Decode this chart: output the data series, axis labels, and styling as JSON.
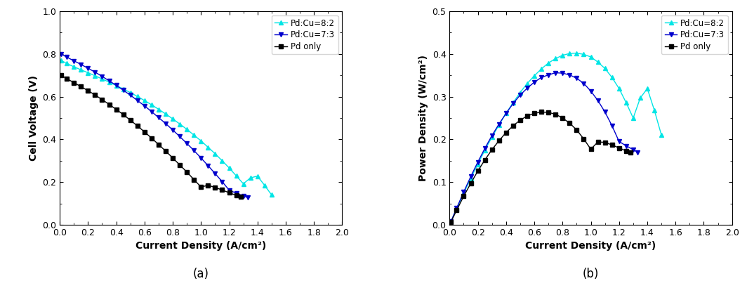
{
  "fig_width": 10.64,
  "fig_height": 4.0,
  "dpi": 100,
  "colors": {
    "pd_cu_82": "#00E5E5",
    "pd_cu_73": "#0000CC",
    "pd_only": "#000000"
  },
  "subplot_a": {
    "xlabel": "Current Density (A/cm²)",
    "ylabel": "Cell Voltage (V)",
    "label_bottom": "(a)",
    "xlim": [
      0,
      2.0
    ],
    "ylim": [
      0.0,
      1.0
    ],
    "xticks": [
      0.0,
      0.2,
      0.4,
      0.6,
      0.8,
      1.0,
      1.2,
      1.4,
      1.6,
      1.8,
      2.0
    ],
    "yticks": [
      0.0,
      0.2,
      0.4,
      0.6,
      0.8,
      1.0
    ],
    "legend_labels": [
      "Pd:Cu=8:2",
      "Pd:Cu=7:3",
      "Pd only"
    ],
    "pd_cu_82_x": [
      0.01,
      0.05,
      0.1,
      0.15,
      0.2,
      0.25,
      0.3,
      0.35,
      0.4,
      0.45,
      0.5,
      0.55,
      0.6,
      0.65,
      0.7,
      0.75,
      0.8,
      0.85,
      0.9,
      0.95,
      1.0,
      1.05,
      1.1,
      1.15,
      1.2,
      1.25,
      1.3,
      1.35,
      1.4,
      1.45,
      1.5
    ],
    "pd_cu_82_y": [
      0.77,
      0.755,
      0.74,
      0.726,
      0.712,
      0.698,
      0.683,
      0.668,
      0.652,
      0.636,
      0.619,
      0.601,
      0.582,
      0.562,
      0.541,
      0.519,
      0.496,
      0.472,
      0.447,
      0.42,
      0.393,
      0.363,
      0.333,
      0.3,
      0.266,
      0.229,
      0.192,
      0.22,
      0.228,
      0.185,
      0.14
    ],
    "pd_cu_73_x": [
      0.01,
      0.05,
      0.1,
      0.15,
      0.2,
      0.25,
      0.3,
      0.35,
      0.4,
      0.45,
      0.5,
      0.55,
      0.6,
      0.65,
      0.7,
      0.75,
      0.8,
      0.85,
      0.9,
      0.95,
      1.0,
      1.05,
      1.1,
      1.15,
      1.2,
      1.25,
      1.3,
      1.33
    ],
    "pd_cu_73_y": [
      0.8,
      0.785,
      0.768,
      0.751,
      0.733,
      0.715,
      0.695,
      0.674,
      0.653,
      0.63,
      0.607,
      0.582,
      0.557,
      0.53,
      0.502,
      0.474,
      0.444,
      0.413,
      0.381,
      0.348,
      0.313,
      0.277,
      0.24,
      0.202,
      0.162,
      0.148,
      0.135,
      0.128
    ],
    "pd_only_x": [
      0.01,
      0.05,
      0.1,
      0.15,
      0.2,
      0.25,
      0.3,
      0.35,
      0.4,
      0.45,
      0.5,
      0.55,
      0.6,
      0.65,
      0.7,
      0.75,
      0.8,
      0.85,
      0.9,
      0.95,
      1.0,
      1.05,
      1.1,
      1.15,
      1.2,
      1.25,
      1.28
    ],
    "pd_only_y": [
      0.7,
      0.684,
      0.666,
      0.647,
      0.628,
      0.608,
      0.586,
      0.564,
      0.54,
      0.516,
      0.49,
      0.463,
      0.435,
      0.406,
      0.376,
      0.345,
      0.313,
      0.28,
      0.247,
      0.212,
      0.177,
      0.185,
      0.175,
      0.163,
      0.15,
      0.138,
      0.132
    ]
  },
  "subplot_b": {
    "xlabel": "Current Density (A/cm²)",
    "ylabel": "Power Density (W/cm²)",
    "label_bottom": "(b)",
    "xlim": [
      0,
      2.0
    ],
    "ylim": [
      0.0,
      0.5
    ],
    "xticks": [
      0.0,
      0.2,
      0.4,
      0.6,
      0.8,
      1.0,
      1.2,
      1.4,
      1.6,
      1.8,
      2.0
    ],
    "yticks": [
      0.0,
      0.1,
      0.2,
      0.3,
      0.4,
      0.5
    ],
    "legend_labels": [
      "Pd:Cu=8:2",
      "Pd:Cu=7:3",
      "Pd only"
    ],
    "pd_cu_82_x": [
      0.01,
      0.05,
      0.1,
      0.15,
      0.2,
      0.25,
      0.3,
      0.35,
      0.4,
      0.45,
      0.5,
      0.55,
      0.6,
      0.65,
      0.7,
      0.75,
      0.8,
      0.85,
      0.9,
      0.95,
      1.0,
      1.05,
      1.1,
      1.15,
      1.2,
      1.25,
      1.3,
      1.35,
      1.4,
      1.45,
      1.5
    ],
    "pd_cu_82_y": [
      0.008,
      0.038,
      0.074,
      0.109,
      0.142,
      0.175,
      0.205,
      0.234,
      0.261,
      0.286,
      0.31,
      0.331,
      0.349,
      0.365,
      0.379,
      0.389,
      0.397,
      0.401,
      0.402,
      0.399,
      0.393,
      0.381,
      0.366,
      0.345,
      0.319,
      0.286,
      0.25,
      0.297,
      0.319,
      0.268,
      0.21
    ],
    "pd_cu_73_x": [
      0.01,
      0.05,
      0.1,
      0.15,
      0.2,
      0.25,
      0.3,
      0.35,
      0.4,
      0.45,
      0.5,
      0.55,
      0.6,
      0.65,
      0.7,
      0.75,
      0.8,
      0.85,
      0.9,
      0.95,
      1.0,
      1.05,
      1.1,
      1.15,
      1.2,
      1.25,
      1.3,
      1.33
    ],
    "pd_cu_73_y": [
      0.008,
      0.039,
      0.077,
      0.113,
      0.147,
      0.179,
      0.209,
      0.236,
      0.261,
      0.284,
      0.304,
      0.32,
      0.334,
      0.345,
      0.351,
      0.356,
      0.355,
      0.351,
      0.343,
      0.331,
      0.313,
      0.291,
      0.264,
      0.232,
      0.195,
      0.185,
      0.176,
      0.17
    ],
    "pd_only_x": [
      0.01,
      0.05,
      0.1,
      0.15,
      0.2,
      0.25,
      0.3,
      0.35,
      0.4,
      0.45,
      0.5,
      0.55,
      0.6,
      0.65,
      0.7,
      0.75,
      0.8,
      0.85,
      0.9,
      0.95,
      1.0,
      1.05,
      1.1,
      1.15,
      1.2,
      1.25,
      1.28
    ],
    "pd_only_y": [
      0.007,
      0.034,
      0.067,
      0.097,
      0.126,
      0.152,
      0.176,
      0.197,
      0.216,
      0.232,
      0.245,
      0.255,
      0.261,
      0.264,
      0.263,
      0.259,
      0.25,
      0.238,
      0.222,
      0.201,
      0.177,
      0.194,
      0.193,
      0.187,
      0.18,
      0.173,
      0.169
    ]
  }
}
